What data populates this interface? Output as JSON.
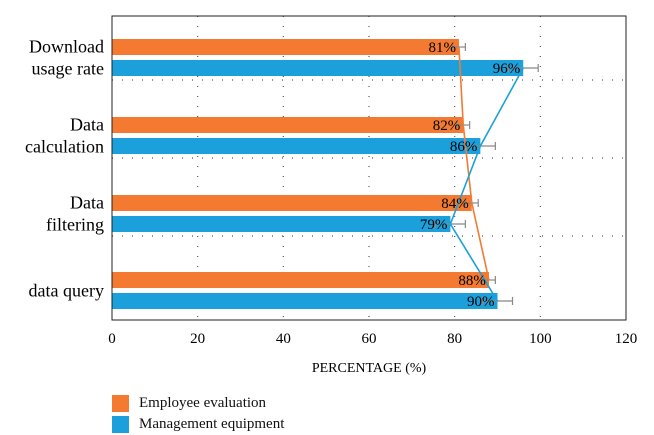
{
  "chart_data": {
    "type": "bar",
    "orientation": "horizontal",
    "categories": [
      [
        "Download",
        "usage rate"
      ],
      [
        "Data",
        "calculation"
      ],
      [
        "Data",
        "filtering"
      ],
      [
        "data query"
      ]
    ],
    "series": [
      {
        "name": "Employee evaluation",
        "color": "#f47a31",
        "values": [
          81,
          82,
          84,
          88
        ],
        "labels": [
          "81%",
          "82%",
          "84%",
          "88%"
        ],
        "error": [
          1.5,
          1.5,
          1.5,
          1.5
        ]
      },
      {
        "name": "Management equipment",
        "color": "#1ba0dc",
        "values": [
          96,
          86,
          79,
          90
        ],
        "labels": [
          "96%",
          "86%",
          "79%",
          "90%"
        ],
        "error": [
          3.5,
          3.5,
          3.5,
          3.5
        ]
      }
    ],
    "xlabel": "PERCENTAGE (%)",
    "xlim": [
      0,
      120
    ],
    "xticks": [
      "0",
      "20",
      "40",
      "60",
      "80",
      "100",
      "120"
    ],
    "grid": "dotted",
    "legend_position": "bottom-left",
    "trend_lines": true
  }
}
